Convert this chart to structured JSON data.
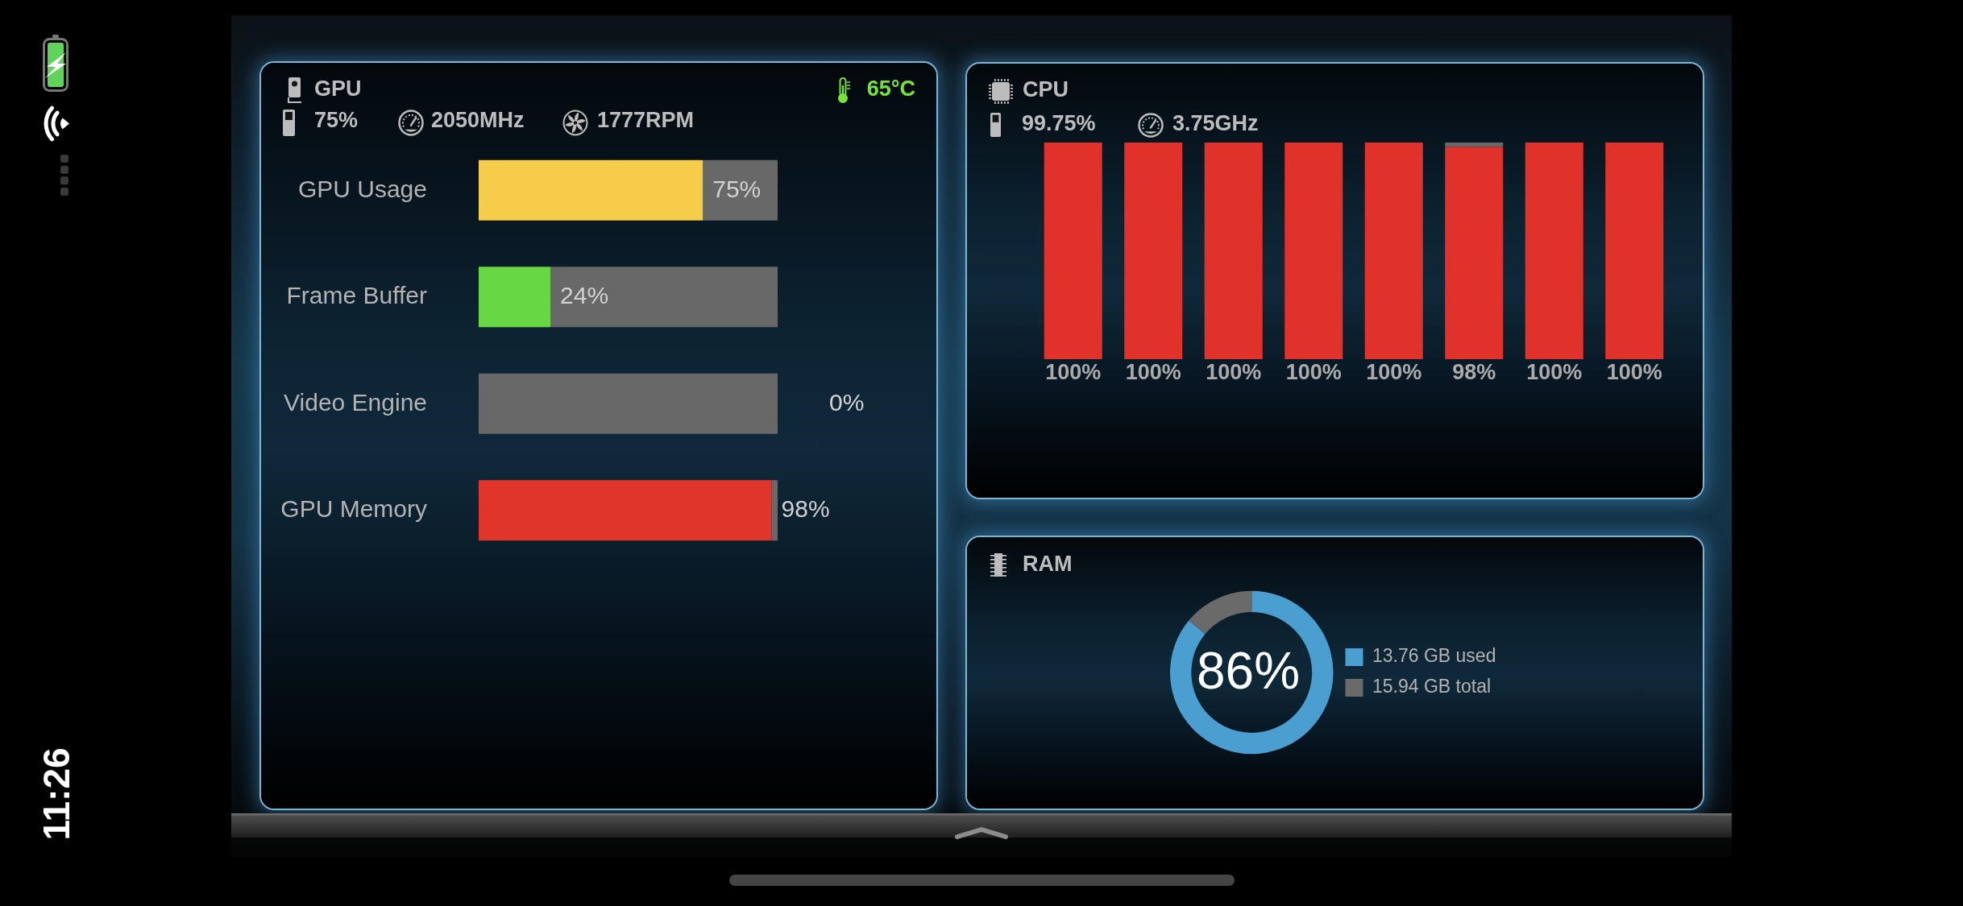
{
  "chart_data": [
    {
      "type": "bar",
      "orientation": "horizontal",
      "stacked": true,
      "title": "GPU",
      "annotations": [
        "75%",
        "2050MHz",
        "1777RPM",
        "65°C"
      ],
      "categories": [
        "GPU Usage",
        "Frame Buffer",
        "Video Engine",
        "GPU Memory"
      ],
      "series": [
        {
          "colors": [
            "#f5cd4b",
            "#67d844",
            "#67d844",
            "#e0352a"
          ],
          "values": [
            75,
            24,
            0,
            98
          ],
          "value_labels": [
            "75%",
            "24%",
            "0%",
            "98%"
          ]
        },
        {
          "color": "#686868",
          "values": [
            25,
            76,
            100,
            2
          ]
        }
      ],
      "xlim": [
        0,
        100
      ],
      "tick_labels": "y"
    },
    {
      "type": "bar",
      "stacked": true,
      "title": "CPU",
      "annotations": [
        "99.75%",
        "3.75GHz"
      ],
      "categories": [
        null,
        null,
        null,
        null,
        null,
        null,
        null,
        null
      ],
      "series": [
        {
          "color": "#e0312a",
          "values": [
            100,
            100,
            100,
            100,
            100,
            98,
            100,
            100
          ],
          "value_labels": [
            "100%",
            "100%",
            "100%",
            "100%",
            "100%",
            "98%",
            "100%",
            "100%"
          ]
        },
        {
          "color": "#686868",
          "values": [
            0,
            0,
            0,
            0,
            0,
            2,
            0,
            0
          ]
        }
      ],
      "ylim": [
        0,
        100
      ],
      "tick_labels": false
    },
    {
      "type": "donut",
      "title": "RAM",
      "annotations": [
        "86%"
      ],
      "categories": [
        "13.76 GB used",
        "15.94 GB total"
      ],
      "values": [
        86,
        14
      ],
      "colors": [
        "#4a9fd0",
        "#6a6a6a"
      ],
      "legend": "right"
    },
    {
      "type": "other",
      "annotations": [
        "11:26"
      ]
    }
  ]
}
